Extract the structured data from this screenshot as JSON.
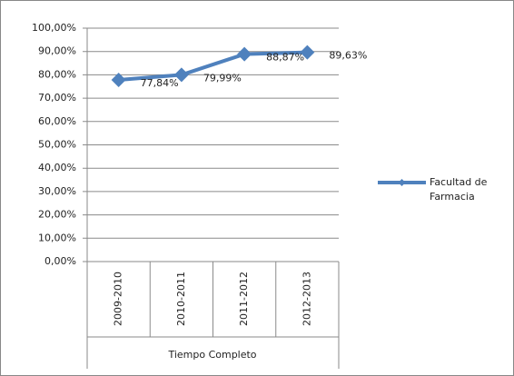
{
  "chart_data": {
    "type": "line",
    "categories": [
      "2009-2010",
      "2010-2011",
      "2011-2012",
      "2012-2013"
    ],
    "x_group_label": "Tiempo Completo",
    "series": [
      {
        "name": "Facultad de Farmacia",
        "color": "#4f81bd",
        "values": [
          77.84,
          79.99,
          88.87,
          89.63
        ],
        "value_labels": [
          "77,84%",
          "79,99%",
          "88,87%",
          "89,63%"
        ]
      }
    ],
    "ylim": [
      0,
      100
    ],
    "yticks": [
      {
        "value": 0,
        "label": "0,00%"
      },
      {
        "value": 10,
        "label": "10,00%"
      },
      {
        "value": 20,
        "label": "20,00%"
      },
      {
        "value": 30,
        "label": "30,00%"
      },
      {
        "value": 40,
        "label": "40,00%"
      },
      {
        "value": 50,
        "label": "50,00%"
      },
      {
        "value": 60,
        "label": "60,00%"
      },
      {
        "value": 70,
        "label": "70,00%"
      },
      {
        "value": 80,
        "label": "80,00%"
      },
      {
        "value": 90,
        "label": "90,00%"
      },
      {
        "value": 100,
        "label": "100,00%"
      }
    ],
    "grid": true,
    "legend": "right"
  }
}
